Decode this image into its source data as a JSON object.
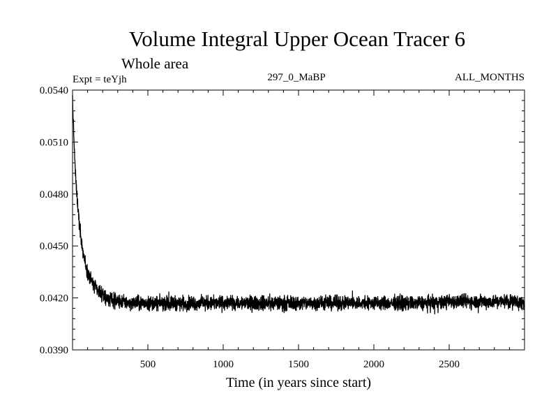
{
  "chart_data": {
    "type": "line",
    "title": "Volume Integral Upper Ocean Tracer 6",
    "subtitle": "Whole area",
    "header_left": "Expt = teYjh",
    "header_center": "297_0_MaBP",
    "header_right": "ALL_MONTHS",
    "xlabel": "Time (in years since start)",
    "ylabel": "",
    "xlim": [
      0,
      3000
    ],
    "ylim": [
      0.039,
      0.054
    ],
    "xticks": [
      500,
      1000,
      1500,
      2000,
      2500
    ],
    "xtick_labels": [
      "500",
      "1000",
      "1500",
      "2000",
      "2500"
    ],
    "yticks": [
      0.039,
      0.042,
      0.045,
      0.048,
      0.051,
      0.054
    ],
    "ytick_labels": [
      "0.0390",
      "0.0420",
      "0.0450",
      "0.0480",
      "0.0510",
      "0.0540"
    ],
    "grid": false,
    "series": [
      {
        "name": "Volume Integral Upper Ocean Tracer 6",
        "x": [
          0,
          5,
          10,
          15,
          20,
          30,
          40,
          50,
          60,
          80,
          100,
          125,
          150,
          175,
          200,
          250,
          300,
          400,
          500,
          600,
          700,
          800,
          900,
          1000,
          1100,
          1200,
          1300,
          1400,
          1500,
          1600,
          1700,
          1800,
          1900,
          2000,
          2100,
          2200,
          2300,
          2400,
          2500,
          2600,
          2700,
          2800,
          2900,
          3000
        ],
        "values": [
          0.0535,
          0.0522,
          0.051,
          0.05,
          0.049,
          0.0478,
          0.0468,
          0.046,
          0.0452,
          0.0442,
          0.0435,
          0.043,
          0.0426,
          0.0423,
          0.0421,
          0.0419,
          0.0418,
          0.0417,
          0.0417,
          0.0417,
          0.0417,
          0.0417,
          0.0417,
          0.0417,
          0.0417,
          0.0417,
          0.0417,
          0.0417,
          0.0417,
          0.0417,
          0.0417,
          0.0417,
          0.0417,
          0.0417,
          0.0417,
          0.0417,
          0.0417,
          0.0417,
          0.0418,
          0.0418,
          0.0418,
          0.0418,
          0.0418,
          0.0417
        ],
        "noise_amplitude": 0.0006
      }
    ]
  }
}
